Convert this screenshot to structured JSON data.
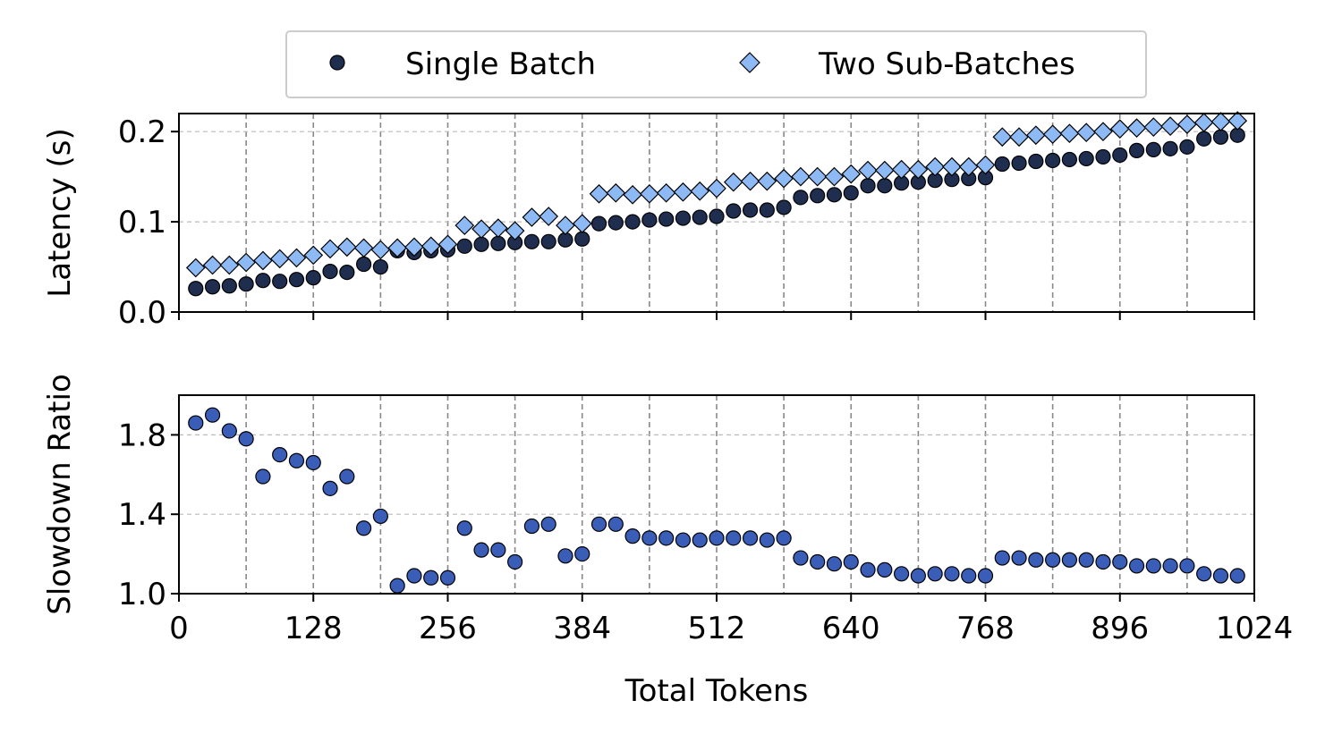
{
  "chart_data": [
    {
      "type": "scatter",
      "title": "",
      "xlabel": "",
      "ylabel": "Latency (s)",
      "xlim": [
        0,
        1024
      ],
      "ylim": [
        0,
        0.22
      ],
      "yticks": [
        0.0,
        0.1,
        0.2
      ],
      "ytick_labels": [
        "0.0",
        "0.1",
        "0.2"
      ],
      "grid": true,
      "legend_position": "top-center",
      "x": [
        16,
        32,
        48,
        64,
        80,
        96,
        112,
        128,
        144,
        160,
        176,
        192,
        208,
        224,
        240,
        256,
        272,
        288,
        304,
        320,
        336,
        352,
        368,
        384,
        400,
        416,
        432,
        448,
        464,
        480,
        496,
        512,
        528,
        544,
        560,
        576,
        592,
        608,
        624,
        640,
        656,
        672,
        688,
        704,
        720,
        736,
        752,
        768,
        784,
        800,
        816,
        832,
        848,
        864,
        880,
        896,
        912,
        928,
        944,
        960,
        976,
        992,
        1008
      ],
      "series": [
        {
          "name": "Single Batch",
          "color": "#1f2d4f",
          "marker": "circle",
          "values": [
            0.026,
            0.028,
            0.029,
            0.031,
            0.035,
            0.034,
            0.036,
            0.038,
            0.045,
            0.044,
            0.053,
            0.05,
            0.068,
            0.066,
            0.068,
            0.069,
            0.073,
            0.075,
            0.076,
            0.077,
            0.078,
            0.078,
            0.08,
            0.081,
            0.098,
            0.099,
            0.1,
            0.102,
            0.103,
            0.104,
            0.105,
            0.106,
            0.112,
            0.113,
            0.113,
            0.116,
            0.127,
            0.129,
            0.13,
            0.132,
            0.14,
            0.14,
            0.143,
            0.144,
            0.146,
            0.147,
            0.148,
            0.149,
            0.164,
            0.165,
            0.167,
            0.168,
            0.169,
            0.17,
            0.172,
            0.174,
            0.179,
            0.18,
            0.181,
            0.183,
            0.192,
            0.194,
            0.196
          ]
        },
        {
          "name": "Two Sub-Batches",
          "color": "#8db9f5",
          "marker": "diamond",
          "values": [
            0.049,
            0.052,
            0.052,
            0.055,
            0.057,
            0.059,
            0.06,
            0.063,
            0.07,
            0.072,
            0.071,
            0.069,
            0.071,
            0.072,
            0.073,
            0.075,
            0.096,
            0.092,
            0.093,
            0.09,
            0.105,
            0.106,
            0.096,
            0.098,
            0.131,
            0.132,
            0.13,
            0.131,
            0.132,
            0.133,
            0.134,
            0.137,
            0.144,
            0.145,
            0.145,
            0.148,
            0.15,
            0.15,
            0.15,
            0.153,
            0.157,
            0.157,
            0.158,
            0.158,
            0.161,
            0.161,
            0.161,
            0.163,
            0.194,
            0.194,
            0.196,
            0.197,
            0.198,
            0.199,
            0.2,
            0.203,
            0.204,
            0.205,
            0.206,
            0.208,
            0.21,
            0.211,
            0.212
          ]
        }
      ]
    },
    {
      "type": "scatter",
      "title": "",
      "xlabel": "Total Tokens",
      "ylabel": "Slowdown Ratio",
      "xlim": [
        0,
        1024
      ],
      "ylim": [
        1.0,
        2.0
      ],
      "xticks": [
        0,
        128,
        256,
        384,
        512,
        640,
        768,
        896,
        1024
      ],
      "xtick_labels": [
        "0",
        "128",
        "256",
        "384",
        "512",
        "640",
        "768",
        "896",
        "1024"
      ],
      "yticks": [
        1.0,
        1.4,
        1.8
      ],
      "ytick_labels": [
        "1.0",
        "1.4",
        "1.8"
      ],
      "grid": true,
      "x": [
        16,
        32,
        48,
        64,
        80,
        96,
        112,
        128,
        144,
        160,
        176,
        192,
        208,
        224,
        240,
        256,
        272,
        288,
        304,
        320,
        336,
        352,
        368,
        384,
        400,
        416,
        432,
        448,
        464,
        480,
        496,
        512,
        528,
        544,
        560,
        576,
        592,
        608,
        624,
        640,
        656,
        672,
        688,
        704,
        720,
        736,
        752,
        768,
        784,
        800,
        816,
        832,
        848,
        864,
        880,
        896,
        912,
        928,
        944,
        960,
        976,
        992,
        1008
      ],
      "series": [
        {
          "color": "#3a5db8",
          "marker": "circle",
          "values": [
            1.86,
            1.9,
            1.82,
            1.78,
            1.59,
            1.7,
            1.67,
            1.66,
            1.53,
            1.59,
            1.33,
            1.39,
            1.04,
            1.09,
            1.08,
            1.08,
            1.33,
            1.22,
            1.22,
            1.16,
            1.34,
            1.35,
            1.19,
            1.2,
            1.35,
            1.35,
            1.29,
            1.28,
            1.28,
            1.27,
            1.27,
            1.28,
            1.28,
            1.28,
            1.27,
            1.28,
            1.18,
            1.16,
            1.15,
            1.16,
            1.12,
            1.12,
            1.1,
            1.09,
            1.1,
            1.1,
            1.09,
            1.09,
            1.18,
            1.18,
            1.17,
            1.17,
            1.17,
            1.17,
            1.16,
            1.16,
            1.14,
            1.14,
            1.14,
            1.14,
            1.1,
            1.09,
            1.09
          ]
        }
      ]
    }
  ]
}
